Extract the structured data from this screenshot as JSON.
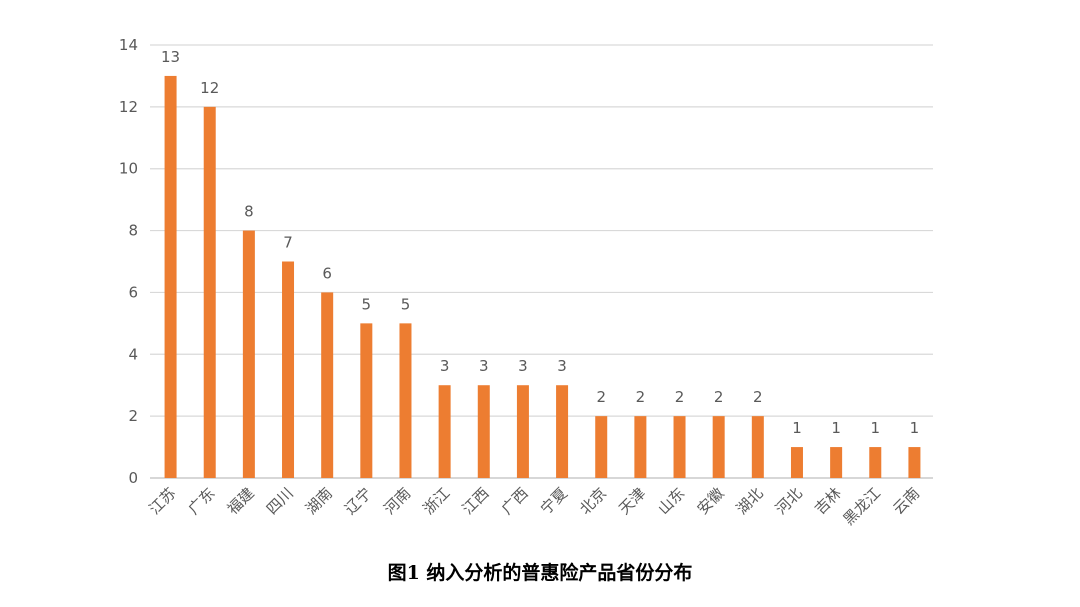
{
  "caption": "图1 纳入分析的普惠险产品省份分布",
  "colors": {
    "bar": "#ED7D31",
    "grid": "#D9D9D9",
    "axis": "#BFBFBF",
    "text": "#595959"
  },
  "chart_data": {
    "type": "bar",
    "categories": [
      "江苏",
      "广东",
      "福建",
      "四川",
      "湖南",
      "辽宁",
      "河南",
      "浙江",
      "江西",
      "广西",
      "宁夏",
      "北京",
      "天津",
      "山东",
      "安徽",
      "湖北",
      "河北",
      "吉林",
      "黑龙江",
      "云南"
    ],
    "values": [
      13,
      12,
      8,
      7,
      6,
      5,
      5,
      3,
      3,
      3,
      3,
      2,
      2,
      2,
      2,
      2,
      1,
      1,
      1,
      1
    ],
    "ylim": [
      0,
      14
    ],
    "yticks": [
      0,
      2,
      4,
      6,
      8,
      10,
      12,
      14
    ],
    "grid": true,
    "data_labels": true,
    "title": "",
    "xlabel": "",
    "ylabel": ""
  }
}
